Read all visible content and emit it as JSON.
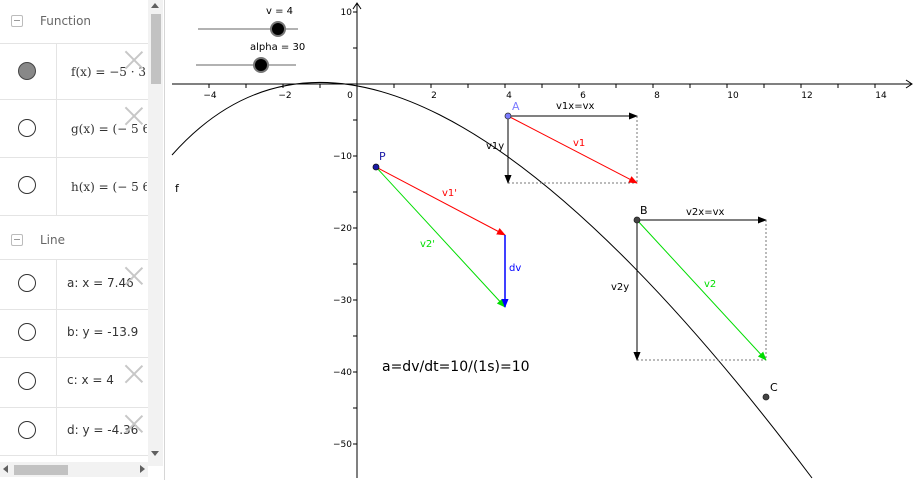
{
  "algebra": {
    "groups": [
      {
        "label": "Function"
      },
      {
        "label": "Line"
      }
    ],
    "functions": [
      {
        "expr": "f(x) = −5 · 3",
        "shown": true
      },
      {
        "expr": "g(x) = (− 5 6",
        "shown": false
      },
      {
        "expr": "h(x) = (− 5 6",
        "shown": false
      }
    ],
    "lines": [
      {
        "expr": "a: x = 7.46",
        "shown": false
      },
      {
        "expr": "b: y = -13.9",
        "shown": false
      },
      {
        "expr": "c: x = 4",
        "shown": false
      },
      {
        "expr": "d: y = -4.36",
        "shown": false
      }
    ]
  },
  "sliders": {
    "v": {
      "label": "v = 4",
      "value": 4
    },
    "alpha": {
      "label": "alpha = 30",
      "value": 30
    }
  },
  "graph": {
    "x_ticks": [
      "−4",
      "−2",
      "0",
      "2",
      "4",
      "6",
      "8",
      "10",
      "12",
      "14"
    ],
    "y_ticks": [
      "10",
      "−10",
      "−20",
      "−30",
      "−40",
      "−50"
    ],
    "curve_label": "f",
    "points": {
      "A": "A",
      "B": "B",
      "C": "C",
      "P": "P"
    },
    "vector_labels": {
      "v1x": "v1x=vx",
      "v1y": "v1y",
      "v1": "v1",
      "v2x": "v2x=vx",
      "v2y": "v2y",
      "v2": "v2",
      "v1p": "v1'",
      "v2p": "v2'",
      "dv": "dv"
    },
    "formula": "a=dv/dt=10/(1s)=10",
    "colors": {
      "v1": "#ff0000",
      "v2": "#00dd00",
      "dv": "#0000ff",
      "pointA": "#7b7bff",
      "pointP": "#1a1aa6"
    }
  }
}
